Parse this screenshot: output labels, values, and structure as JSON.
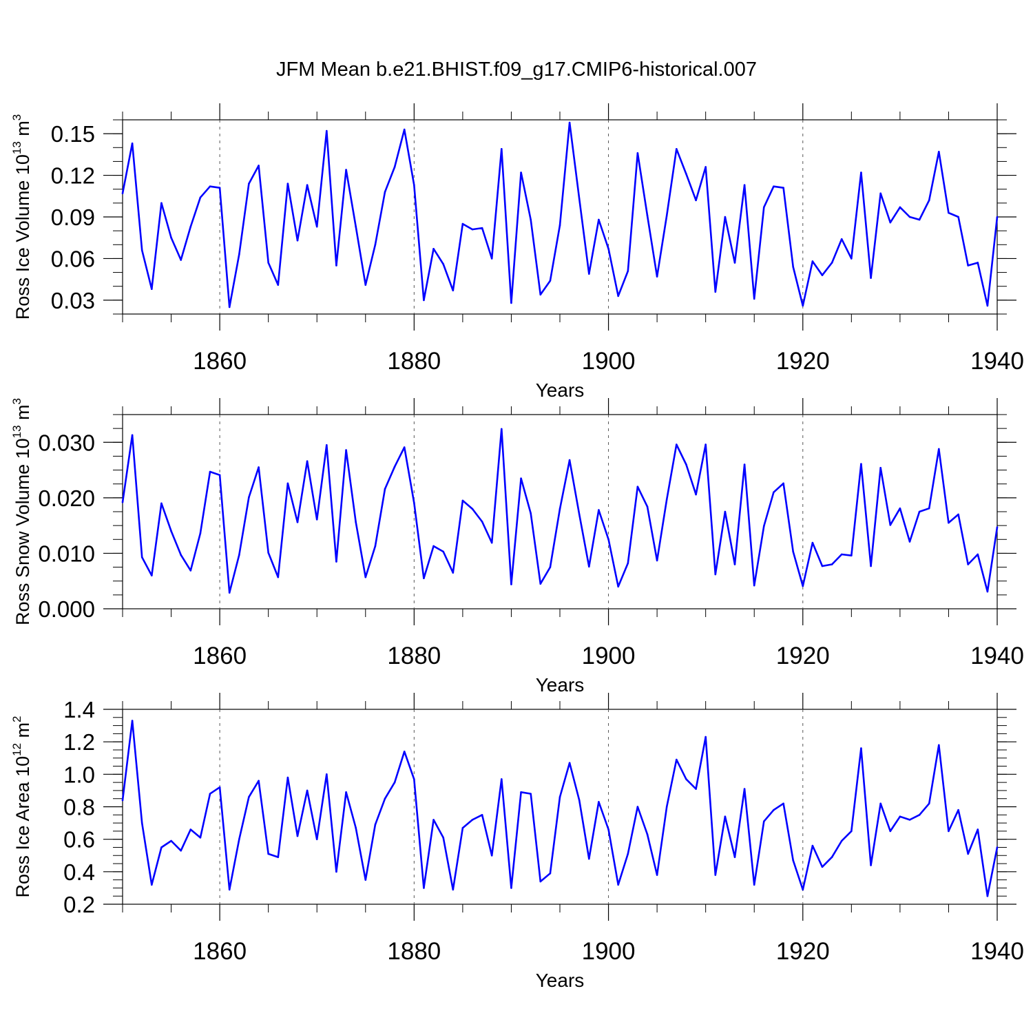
{
  "title": "JFM Mean b.e21.BHIST.f09_g17.CMIP6-historical.007",
  "line_color": "#0000ff",
  "chart_data": [
    {
      "type": "line",
      "ylabel": {
        "main": "Ross Ice Volume 10",
        "exp": "13",
        "unit": " m",
        "unit_exp": "3"
      },
      "xlabel": "Years",
      "xlim": [
        1850,
        1940
      ],
      "ylim": [
        0.02,
        0.16
      ],
      "xticks": [
        1860,
        1880,
        1900,
        1920,
        1940
      ],
      "yticks": [
        0.03,
        0.06,
        0.09,
        0.12,
        0.15
      ],
      "ytick_labels": [
        "0.03",
        "0.06",
        "0.09",
        "0.12",
        "0.15"
      ],
      "grid_x": [
        1860,
        1880,
        1900,
        1920
      ],
      "x": [
        1850,
        1851,
        1852,
        1853,
        1854,
        1855,
        1856,
        1857,
        1858,
        1859,
        1860,
        1861,
        1862,
        1863,
        1864,
        1865,
        1866,
        1867,
        1868,
        1869,
        1870,
        1871,
        1872,
        1873,
        1874,
        1875,
        1876,
        1877,
        1878,
        1879,
        1880,
        1881,
        1882,
        1883,
        1884,
        1885,
        1886,
        1887,
        1888,
        1889,
        1890,
        1891,
        1892,
        1893,
        1894,
        1895,
        1896,
        1897,
        1898,
        1899,
        1900,
        1901,
        1902,
        1903,
        1904,
        1905,
        1906,
        1907,
        1908,
        1909,
        1910,
        1911,
        1912,
        1913,
        1914,
        1915,
        1916,
        1917,
        1918,
        1919,
        1920,
        1921,
        1922,
        1923,
        1924,
        1925,
        1926,
        1927,
        1928,
        1929,
        1930,
        1931,
        1932,
        1933,
        1934,
        1935,
        1936,
        1937,
        1938,
        1939,
        1940
      ],
      "values": [
        0.107,
        0.143,
        0.066,
        0.038,
        0.1,
        0.075,
        0.059,
        0.083,
        0.104,
        0.112,
        0.111,
        0.025,
        0.063,
        0.114,
        0.127,
        0.057,
        0.041,
        0.114,
        0.073,
        0.113,
        0.083,
        0.152,
        0.055,
        0.124,
        0.083,
        0.041,
        0.07,
        0.108,
        0.126,
        0.153,
        0.113,
        0.03,
        0.067,
        0.056,
        0.037,
        0.085,
        0.081,
        0.082,
        0.06,
        0.139,
        0.028,
        0.122,
        0.088,
        0.034,
        0.044,
        0.084,
        0.158,
        0.103,
        0.049,
        0.088,
        0.067,
        0.033,
        0.051,
        0.136,
        0.091,
        0.047,
        0.091,
        0.139,
        0.121,
        0.102,
        0.126,
        0.036,
        0.09,
        0.057,
        0.113,
        0.031,
        0.097,
        0.112,
        0.111,
        0.054,
        0.026,
        0.058,
        0.048,
        0.057,
        0.074,
        0.06,
        0.122,
        0.046,
        0.107,
        0.086,
        0.097,
        0.09,
        0.088,
        0.102,
        0.137,
        0.093,
        0.09,
        0.055,
        0.057,
        0.026,
        0.09
      ]
    },
    {
      "type": "line",
      "ylabel": {
        "main": "Ross Snow Volume 10",
        "exp": "13",
        "unit": " m",
        "unit_exp": "3"
      },
      "xlabel": "Years",
      "xlim": [
        1850,
        1940
      ],
      "ylim": [
        0.0,
        0.035
      ],
      "xticks": [
        1860,
        1880,
        1900,
        1920,
        1940
      ],
      "yticks": [
        0.0,
        0.01,
        0.02,
        0.03
      ],
      "ytick_labels": [
        "0.000",
        "0.010",
        "0.020",
        "0.030"
      ],
      "grid_x": [
        1860,
        1880,
        1900,
        1920
      ],
      "x": [
        1850,
        1851,
        1852,
        1853,
        1854,
        1855,
        1856,
        1857,
        1858,
        1859,
        1860,
        1861,
        1862,
        1863,
        1864,
        1865,
        1866,
        1867,
        1868,
        1869,
        1870,
        1871,
        1872,
        1873,
        1874,
        1875,
        1876,
        1877,
        1878,
        1879,
        1880,
        1881,
        1882,
        1883,
        1884,
        1885,
        1886,
        1887,
        1888,
        1889,
        1890,
        1891,
        1892,
        1893,
        1894,
        1895,
        1896,
        1897,
        1898,
        1899,
        1900,
        1901,
        1902,
        1903,
        1904,
        1905,
        1906,
        1907,
        1908,
        1909,
        1910,
        1911,
        1912,
        1913,
        1914,
        1915,
        1916,
        1917,
        1918,
        1919,
        1920,
        1921,
        1922,
        1923,
        1924,
        1925,
        1926,
        1927,
        1928,
        1929,
        1930,
        1931,
        1932,
        1933,
        1934,
        1935,
        1936,
        1937,
        1938,
        1939,
        1940
      ],
      "values": [
        0.0192,
        0.0313,
        0.0093,
        0.006,
        0.019,
        0.014,
        0.0097,
        0.0069,
        0.0136,
        0.0247,
        0.0241,
        0.0029,
        0.0097,
        0.0201,
        0.0255,
        0.0101,
        0.0057,
        0.0226,
        0.0156,
        0.0266,
        0.0161,
        0.0295,
        0.0085,
        0.0286,
        0.0156,
        0.0057,
        0.0113,
        0.0216,
        0.0256,
        0.0291,
        0.0191,
        0.0055,
        0.0113,
        0.0103,
        0.0065,
        0.0195,
        0.018,
        0.0157,
        0.0119,
        0.0324,
        0.0044,
        0.0235,
        0.0172,
        0.0045,
        0.0075,
        0.018,
        0.0268,
        0.017,
        0.0076,
        0.0178,
        0.0125,
        0.004,
        0.0082,
        0.022,
        0.0184,
        0.0087,
        0.0197,
        0.0296,
        0.026,
        0.0206,
        0.0296,
        0.0062,
        0.0175,
        0.008,
        0.026,
        0.0042,
        0.0149,
        0.021,
        0.0226,
        0.0103,
        0.0041,
        0.0119,
        0.0077,
        0.008,
        0.0098,
        0.0096,
        0.0261,
        0.0077,
        0.0254,
        0.0151,
        0.0181,
        0.0121,
        0.0175,
        0.0181,
        0.0288,
        0.0155,
        0.017,
        0.008,
        0.0098,
        0.0031,
        0.0147
      ]
    },
    {
      "type": "line",
      "ylabel": {
        "main": "Ross Ice Area 10",
        "exp": "12",
        "unit": " m",
        "unit_exp": "2"
      },
      "xlabel": "Years",
      "xlim": [
        1850,
        1940
      ],
      "ylim": [
        0.2,
        1.4
      ],
      "xticks": [
        1860,
        1880,
        1900,
        1920,
        1940
      ],
      "yticks": [
        0.2,
        0.4,
        0.6,
        0.8,
        1.0,
        1.2,
        1.4
      ],
      "ytick_labels": [
        "0.2",
        "0.4",
        "0.6",
        "0.8",
        "1.0",
        "1.2",
        "1.4"
      ],
      "grid_x": [
        1860,
        1880,
        1900,
        1920
      ],
      "x": [
        1850,
        1851,
        1852,
        1853,
        1854,
        1855,
        1856,
        1857,
        1858,
        1859,
        1860,
        1861,
        1862,
        1863,
        1864,
        1865,
        1866,
        1867,
        1868,
        1869,
        1870,
        1871,
        1872,
        1873,
        1874,
        1875,
        1876,
        1877,
        1878,
        1879,
        1880,
        1881,
        1882,
        1883,
        1884,
        1885,
        1886,
        1887,
        1888,
        1889,
        1890,
        1891,
        1892,
        1893,
        1894,
        1895,
        1896,
        1897,
        1898,
        1899,
        1900,
        1901,
        1902,
        1903,
        1904,
        1905,
        1906,
        1907,
        1908,
        1909,
        1910,
        1911,
        1912,
        1913,
        1914,
        1915,
        1916,
        1917,
        1918,
        1919,
        1920,
        1921,
        1922,
        1923,
        1924,
        1925,
        1926,
        1927,
        1928,
        1929,
        1930,
        1931,
        1932,
        1933,
        1934,
        1935,
        1936,
        1937,
        1938,
        1939,
        1940
      ],
      "values": [
        0.84,
        1.33,
        0.7,
        0.32,
        0.55,
        0.59,
        0.53,
        0.66,
        0.61,
        0.88,
        0.92,
        0.29,
        0.6,
        0.86,
        0.96,
        0.51,
        0.49,
        0.98,
        0.62,
        0.9,
        0.6,
        1.0,
        0.4,
        0.89,
        0.67,
        0.35,
        0.69,
        0.85,
        0.95,
        1.14,
        0.97,
        0.3,
        0.72,
        0.61,
        0.29,
        0.67,
        0.72,
        0.75,
        0.5,
        0.97,
        0.3,
        0.89,
        0.88,
        0.34,
        0.39,
        0.86,
        1.07,
        0.84,
        0.48,
        0.83,
        0.66,
        0.32,
        0.51,
        0.8,
        0.63,
        0.38,
        0.8,
        1.09,
        0.97,
        0.91,
        1.23,
        0.38,
        0.74,
        0.49,
        0.91,
        0.32,
        0.71,
        0.78,
        0.82,
        0.47,
        0.29,
        0.56,
        0.43,
        0.49,
        0.59,
        0.65,
        1.16,
        0.44,
        0.82,
        0.65,
        0.74,
        0.72,
        0.75,
        0.82,
        1.18,
        0.65,
        0.78,
        0.51,
        0.66,
        0.25,
        0.55
      ]
    }
  ]
}
